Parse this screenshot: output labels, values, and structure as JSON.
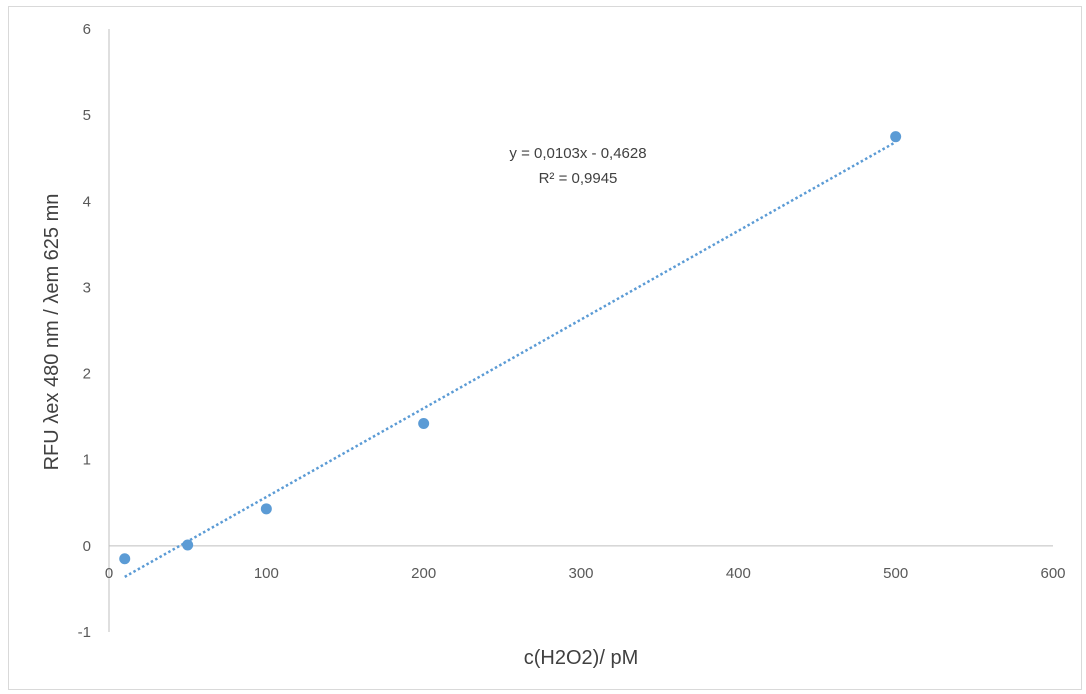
{
  "chart_data": {
    "type": "scatter",
    "title": "",
    "xlabel": "c(H2O2)/ pM",
    "ylabel": "RFU λex 480 nm / λem 625 mn",
    "xlim": [
      0,
      600
    ],
    "ylim": [
      -1,
      6
    ],
    "x_ticks": [
      "0",
      "100",
      "200",
      "300",
      "400",
      "500",
      "600"
    ],
    "y_ticks": [
      "-1",
      "0",
      "1",
      "2",
      "3",
      "4",
      "5",
      "6"
    ],
    "grid": false,
    "legend": "none",
    "series": [
      {
        "points": [
          {
            "x": 10,
            "y": -0.15
          },
          {
            "x": 50,
            "y": 0.01
          },
          {
            "x": 100,
            "y": 0.43
          },
          {
            "x": 200,
            "y": 1.42
          },
          {
            "x": 500,
            "y": 4.75
          }
        ],
        "color": "#5b9bd5"
      }
    ],
    "trendline": {
      "type": "linear",
      "slope": 0.0103,
      "intercept": -0.4628,
      "x_range": [
        10,
        500
      ],
      "style": "dotted",
      "color": "#5b9bd5",
      "equation": "y = 0,0103x - 0,4628",
      "r_squared": "R² = 0,9945"
    }
  }
}
